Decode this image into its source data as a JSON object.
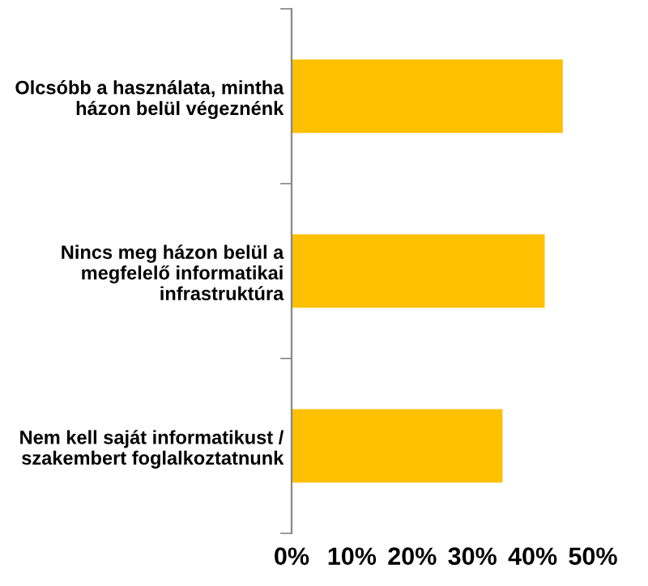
{
  "chart_data": {
    "type": "bar",
    "orientation": "horizontal",
    "categories": [
      "Olcsóbb a használata, mintha\nházon belül végeznénk",
      "Nincs meg házon belül a\nmegfelelő informatikai\ninfrastruktúra",
      "Nem kell saját informatikust /\nszakembert foglalkoztatnunk"
    ],
    "values": [
      45,
      42,
      35
    ],
    "color": "#ffc000",
    "xlim": [
      0,
      50
    ],
    "xticks": [
      {
        "value": 0,
        "label": "0%"
      },
      {
        "value": 10,
        "label": "10%"
      },
      {
        "value": 20,
        "label": "20%"
      },
      {
        "value": 30,
        "label": "30%"
      },
      {
        "value": 40,
        "label": "40%"
      },
      {
        "value": 50,
        "label": "50%"
      }
    ],
    "grid": false
  }
}
